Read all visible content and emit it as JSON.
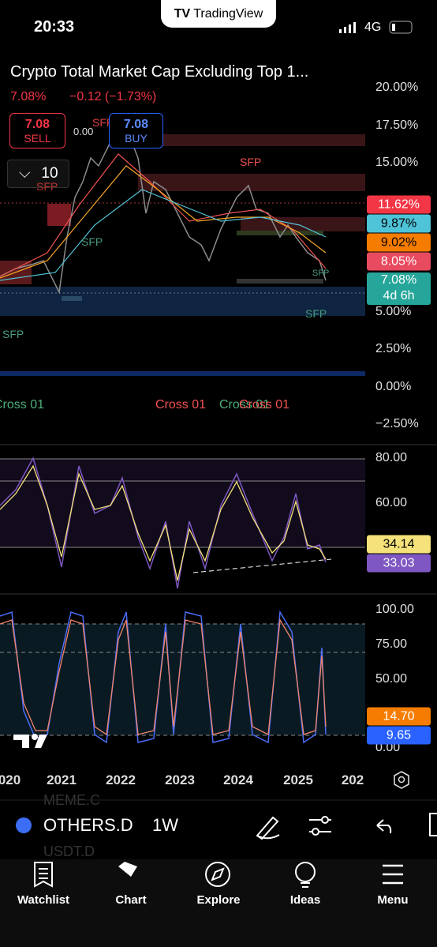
{
  "status_bar": {
    "time": "20:33",
    "app": "TradingView",
    "network": "4G"
  },
  "chart_header": {
    "title": "Crypto Total Market Cap Excluding Top 1...",
    "last": "7.08%",
    "change": "−0.12 (−1.73%)"
  },
  "trade_buttons": {
    "sell_price": "7.08",
    "sell_label": "SELL",
    "buy_price": "7.08",
    "buy_label": "BUY"
  },
  "interval_toggle": "10",
  "annotations": {
    "level": "0.00",
    "sfp": [
      "SFP",
      "SFP",
      "SFP",
      "SFP",
      "SFP",
      "SFP",
      "SFP"
    ],
    "cross": [
      "Cross 01",
      "Cross 01",
      "Cross 01",
      "Cross 01"
    ]
  },
  "price_axis": [
    "20.00%",
    "17.50%",
    "15.00%",
    "5.00%",
    "2.50%",
    "0.00%",
    "−2.50%"
  ],
  "price_badges": [
    "11.62%",
    "9.87%",
    "9.02%",
    "8.05%"
  ],
  "last_badge": {
    "price": "7.08%",
    "countdown": "4d 6h"
  },
  "rsi_axis": [
    "80.00",
    "60.00"
  ],
  "rsi_badges": [
    "34.14",
    "33.03"
  ],
  "stoch_axis": [
    "100.00",
    "75.00",
    "50.00",
    "0.00"
  ],
  "stoch_badges": [
    "14.70",
    "9.65"
  ],
  "time_axis": [
    "020",
    "2021",
    "2022",
    "2023",
    "2024",
    "2025",
    "202"
  ],
  "symbol_bar": {
    "symbol": "OTHERS.D",
    "interval": "1W",
    "above": "MEME.C",
    "below": "USDT.D"
  },
  "tab_bar": [
    "Watchlist",
    "Chart",
    "Explore",
    "Ideas",
    "Menu"
  ]
}
